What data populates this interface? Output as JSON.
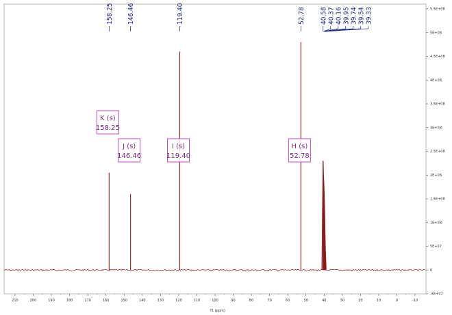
{
  "chart_data": {
    "type": "line",
    "xlabel": "f1 (ppm)",
    "x_reversed": true,
    "xlim": [
      216,
      -16
    ],
    "ylim": [
      -50000000.0,
      560000000.0
    ],
    "grid": false,
    "x_ticks": [
      210,
      200,
      190,
      180,
      170,
      160,
      150,
      140,
      130,
      120,
      110,
      100,
      90,
      80,
      70,
      60,
      50,
      40,
      30,
      20,
      10,
      0,
      -10
    ],
    "x_tick_labels": [
      "210",
      "200",
      "190",
      "180",
      "170",
      "160",
      "150",
      "140",
      "130",
      "120",
      "110",
      "100",
      "90",
      "80",
      "70",
      "60",
      "50",
      "40",
      "30",
      "20",
      "10",
      "0",
      "-10"
    ],
    "y_ticks": [
      550000000.0,
      500000000.0,
      450000000.0,
      400000000.0,
      350000000.0,
      300000000.0,
      250000000.0,
      200000000.0,
      150000000.0,
      100000000.0,
      50000000.0,
      0,
      -50000000.0
    ],
    "y_tick_labels": [
      "5.5E+08",
      "5E+08",
      "4.5E+08",
      "4E+08",
      "3.5E+08",
      "3E+08",
      "2.5E+08",
      "2E+08",
      "1.5E+08",
      "1E+08",
      "5E+07",
      "0",
      "-5E+07"
    ],
    "peaks": [
      {
        "shift": 158.25,
        "intensity": 205000000.0,
        "label": "158.25"
      },
      {
        "shift": 146.46,
        "intensity": 160000000.0,
        "label": "146.46"
      },
      {
        "shift": 119.4,
        "intensity": 460000000.0,
        "label": "119.40"
      },
      {
        "shift": 52.78,
        "intensity": 480000000.0,
        "label": "52.78"
      },
      {
        "shift": 40.58,
        "intensity": 230000000.0,
        "label": "40.58"
      },
      {
        "shift": 40.37,
        "intensity": 200000000.0,
        "label": "40.37"
      },
      {
        "shift": 40.16,
        "intensity": 180000000.0,
        "label": "40.16"
      },
      {
        "shift": 39.95,
        "intensity": 160000000.0,
        "label": "39.95"
      },
      {
        "shift": 39.74,
        "intensity": 120000000.0,
        "label": "39.74"
      },
      {
        "shift": 39.54,
        "intensity": 80000000.0,
        "label": "39.54"
      },
      {
        "shift": 39.33,
        "intensity": 40000000.0,
        "label": "39.33"
      }
    ],
    "multiplets": [
      {
        "name": "K (s)",
        "value": "158.25",
        "shift": 158.25
      },
      {
        "name": "J (s)",
        "value": "146.46",
        "shift": 146.46
      },
      {
        "name": "I (s)",
        "value": "119.40",
        "shift": 119.4
      },
      {
        "name": "H (s)",
        "value": "52.78",
        "shift": 52.78
      }
    ],
    "colors": {
      "spectrum": "#8b1a1a",
      "peak_labels": "#1a237e",
      "multiplet_boxes": "#c04bc0"
    }
  }
}
